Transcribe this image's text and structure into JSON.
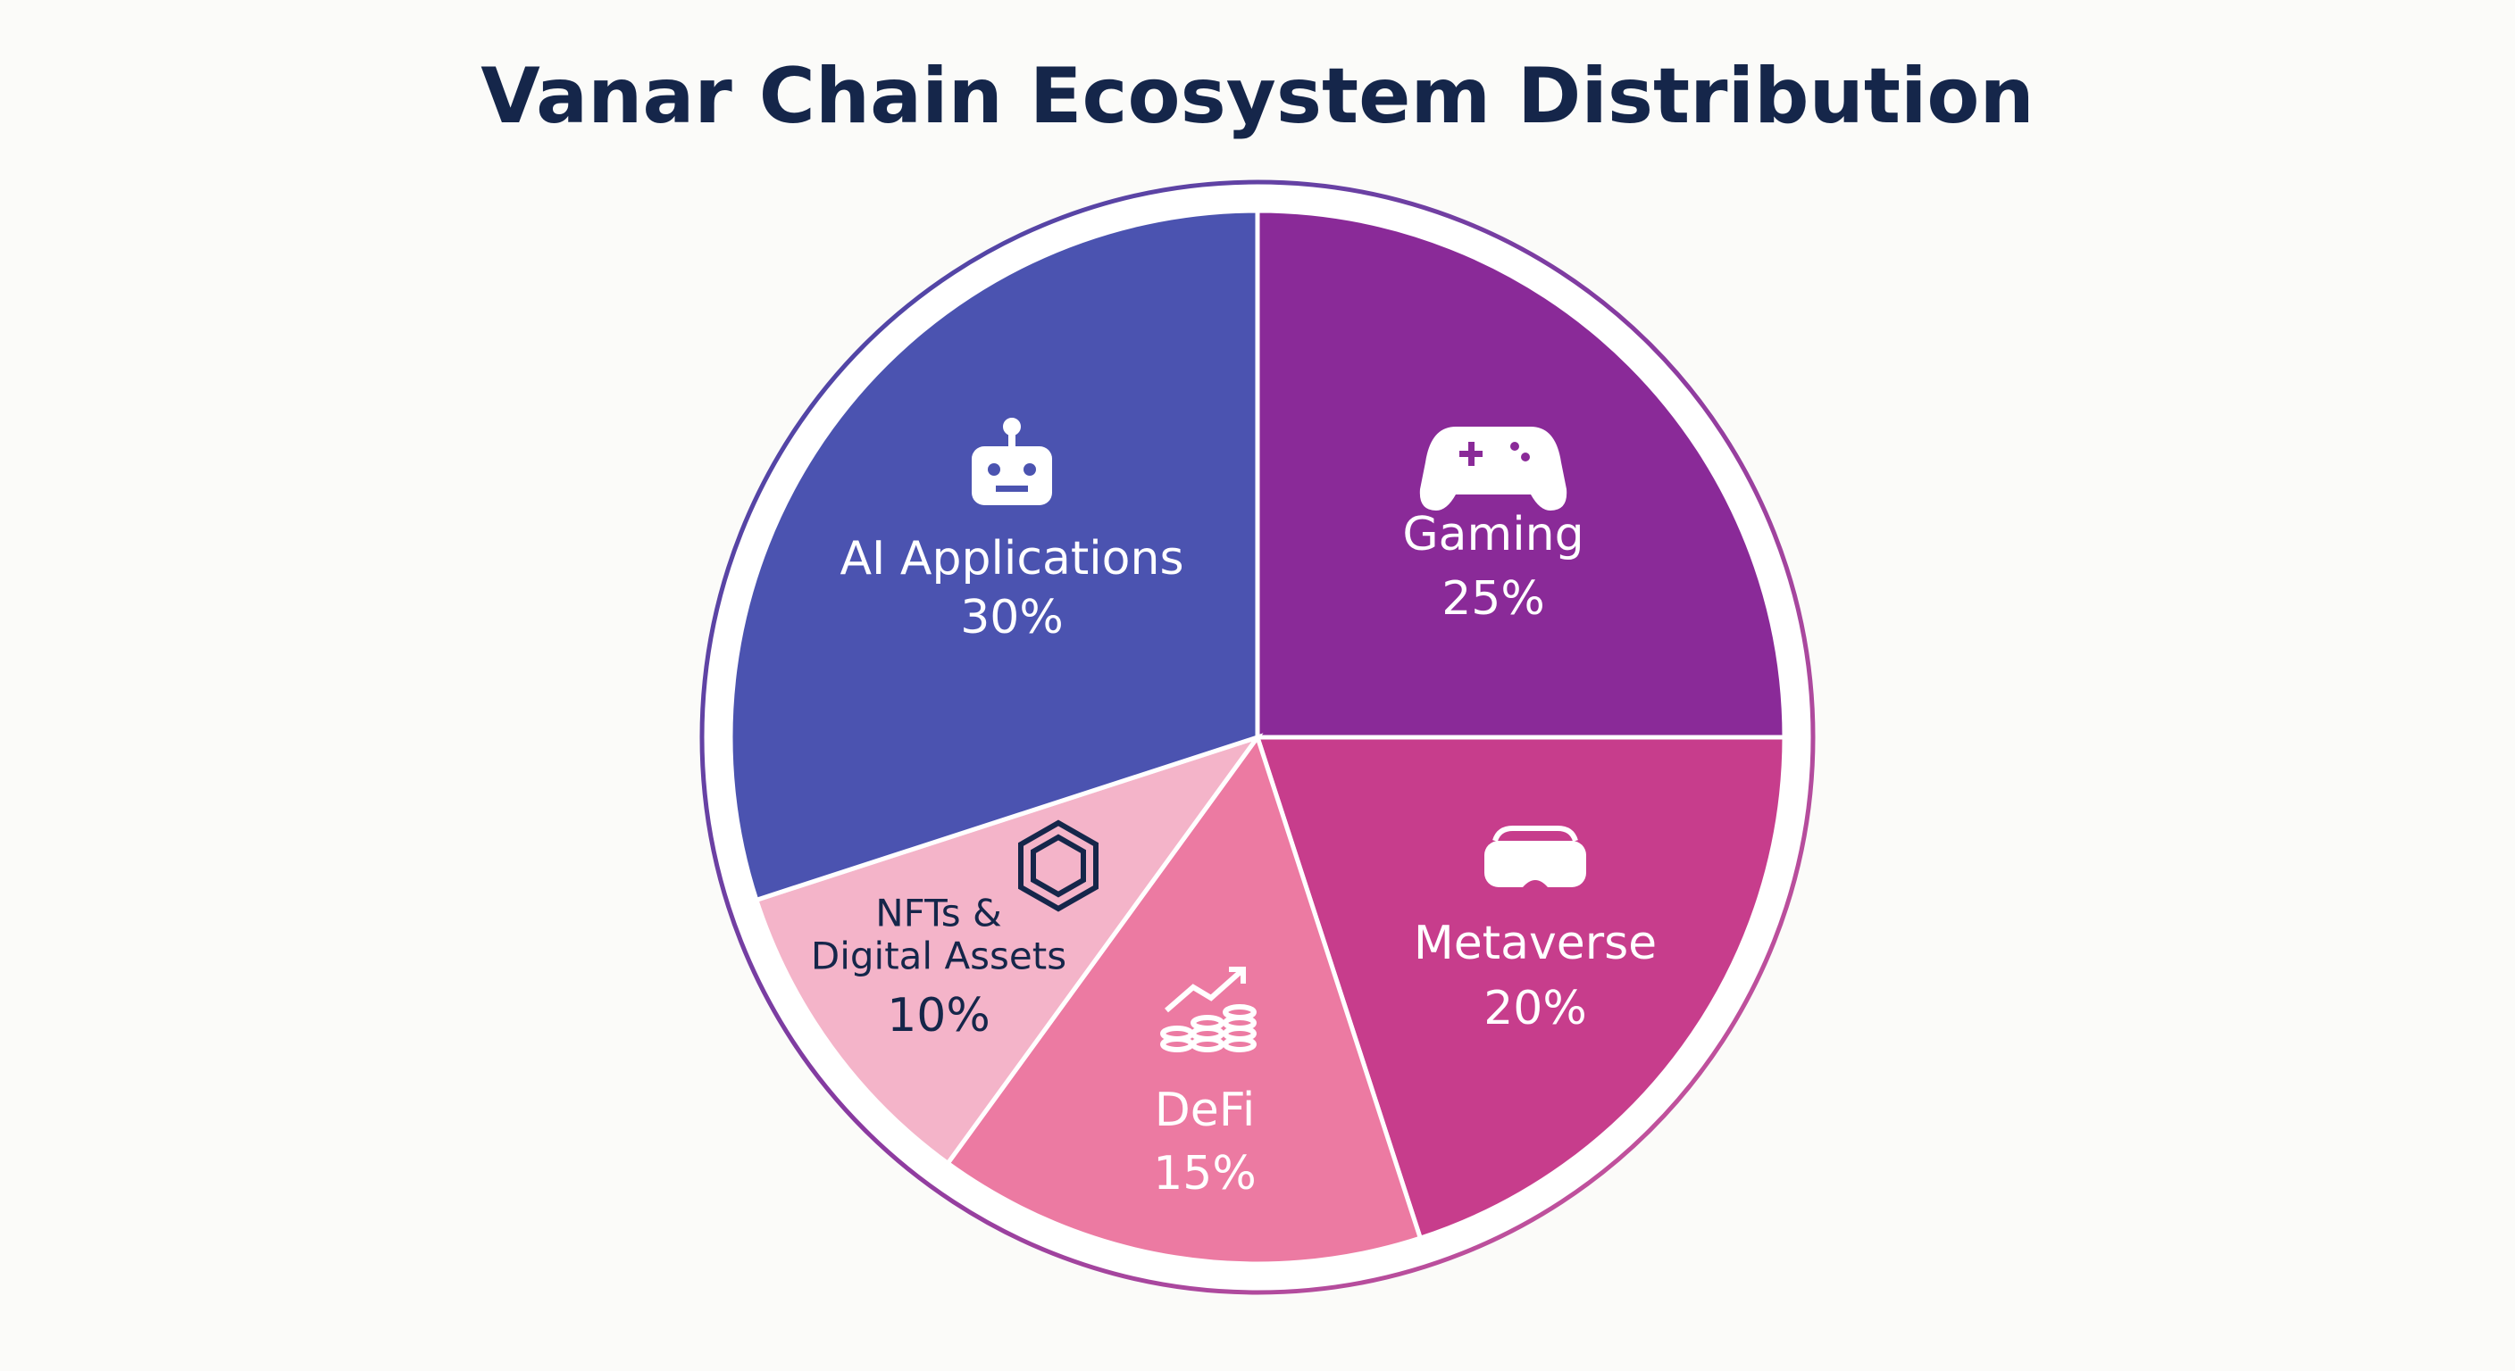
{
  "chart_data": {
    "type": "pie",
    "title": "Vanar Chain Ecosystem Distribution",
    "categories": [
      "Gaming",
      "Metaverse",
      "DeFi",
      "NFTs &\nDigital Assets",
      "AI Applications"
    ],
    "values": [
      25,
      20,
      15,
      10,
      30
    ],
    "value_labels": [
      "25%",
      "20%",
      "15%",
      "10%",
      "30%"
    ],
    "colors": [
      "#8a2a98",
      "#c73d8c",
      "#ec7aa2",
      "#f4b4c9",
      "#4b53b0"
    ]
  }
}
